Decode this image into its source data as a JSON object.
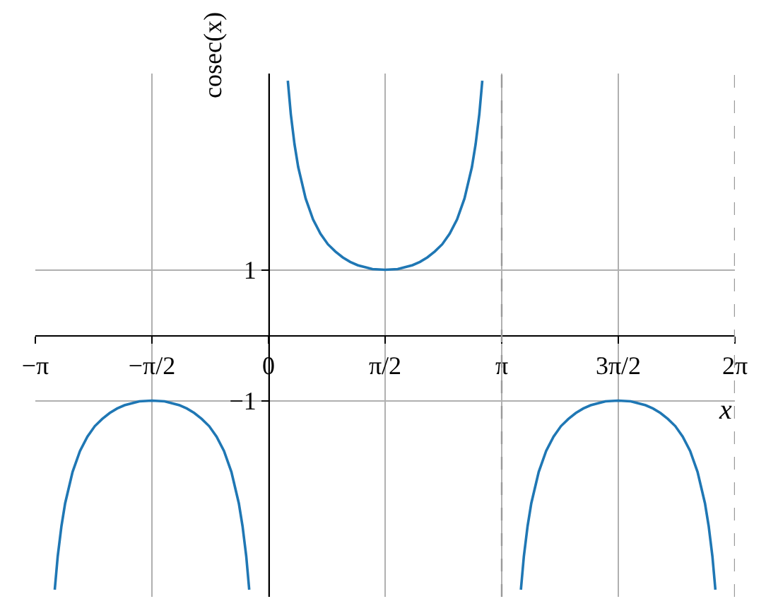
{
  "chart_data": {
    "type": "line",
    "xlabel": "x",
    "ylabel": "cosec(x)",
    "xlim": [
      -3.1416,
      6.2832
    ],
    "ylim": [
      -4,
      4
    ],
    "xticks": [
      {
        "value": -3.1416,
        "label": "−π"
      },
      {
        "value": -1.5708,
        "label": "−π/2"
      },
      {
        "value": 0,
        "label": "0"
      },
      {
        "value": 1.5708,
        "label": "π/2"
      },
      {
        "value": 3.1416,
        "label": "π"
      },
      {
        "value": 4.7124,
        "label": "3π/2"
      },
      {
        "value": 6.2832,
        "label": "2π"
      }
    ],
    "yticks": [
      {
        "value": -1,
        "label": "−1"
      },
      {
        "value": 1,
        "label": "1"
      }
    ],
    "grid": true,
    "line_style": "solid",
    "series": [
      {
        "color": "#1f77b4",
        "x": [
          -2.88,
          -2.84,
          -2.79,
          -2.74,
          -2.64,
          -2.54,
          -2.44,
          -2.34,
          -2.24,
          -2.14,
          -2.04,
          -1.94,
          -1.84,
          -1.74,
          -1.57,
          -1.4,
          -1.3,
          -1.2,
          -1.1,
          -1.0,
          -0.9,
          -0.8,
          -0.7,
          -0.6,
          -0.5,
          -0.4,
          -0.35,
          -0.3,
          -0.26
        ],
        "values": [
          -3.89,
          -3.38,
          -2.92,
          -2.57,
          -2.09,
          -1.77,
          -1.55,
          -1.39,
          -1.28,
          -1.19,
          -1.12,
          -1.07,
          -1.04,
          -1.01,
          -1.0,
          -1.01,
          -1.04,
          -1.07,
          -1.12,
          -1.19,
          -1.28,
          -1.39,
          -1.55,
          -1.77,
          -2.09,
          -2.57,
          -2.92,
          -3.38,
          -3.89
        ]
      },
      {
        "color": "#1f77b4",
        "x": [
          0.26,
          0.3,
          0.35,
          0.4,
          0.5,
          0.6,
          0.7,
          0.8,
          0.9,
          1.0,
          1.1,
          1.2,
          1.3,
          1.4,
          1.57,
          1.74,
          1.84,
          1.94,
          2.04,
          2.14,
          2.24,
          2.34,
          2.44,
          2.54,
          2.64,
          2.74,
          2.79,
          2.84,
          2.88
        ],
        "values": [
          3.89,
          3.38,
          2.92,
          2.57,
          2.09,
          1.77,
          1.55,
          1.39,
          1.28,
          1.19,
          1.12,
          1.07,
          1.04,
          1.01,
          1.0,
          1.01,
          1.04,
          1.07,
          1.12,
          1.19,
          1.28,
          1.39,
          1.55,
          1.77,
          2.09,
          2.57,
          2.92,
          3.38,
          3.89
        ]
      },
      {
        "color": "#1f77b4",
        "x": [
          3.4,
          3.44,
          3.49,
          3.54,
          3.64,
          3.74,
          3.84,
          3.94,
          4.04,
          4.14,
          4.24,
          4.34,
          4.44,
          4.54,
          4.71,
          4.88,
          4.98,
          5.08,
          5.18,
          5.28,
          5.38,
          5.48,
          5.58,
          5.68,
          5.78,
          5.88,
          5.93,
          5.98,
          6.02
        ],
        "values": [
          -3.89,
          -3.38,
          -2.92,
          -2.57,
          -2.09,
          -1.77,
          -1.55,
          -1.39,
          -1.28,
          -1.19,
          -1.12,
          -1.07,
          -1.04,
          -1.01,
          -1.0,
          -1.01,
          -1.04,
          -1.07,
          -1.12,
          -1.19,
          -1.28,
          -1.39,
          -1.55,
          -1.77,
          -2.09,
          -2.57,
          -2.92,
          -3.38,
          -3.89
        ]
      }
    ],
    "ref_lines": [
      {
        "axis": "x",
        "value": 3.1416,
        "color": "#999999",
        "line_style": "dashed"
      },
      {
        "axis": "x",
        "value": 6.2832,
        "color": "#999999",
        "line_style": "dashed"
      }
    ]
  }
}
